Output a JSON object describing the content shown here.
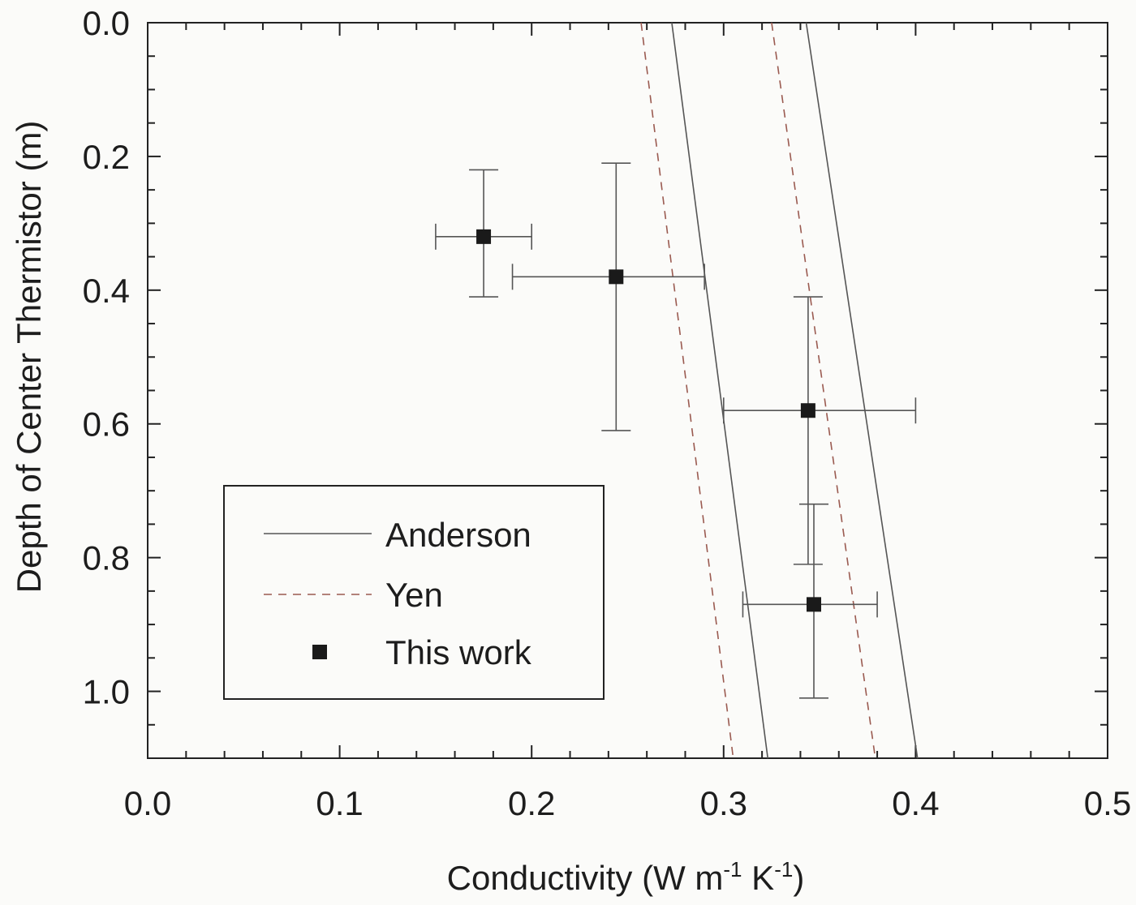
{
  "chart_data": {
    "type": "scatter",
    "xlabel": "Conductivity (W m-1 K-1)",
    "xlabel_parts": {
      "base": "Conductivity (W m",
      "exp1": "-1",
      "mid": " K",
      "exp2": "-1",
      "end": ")"
    },
    "ylabel": "Depth of Center Thermistor (m)",
    "xlim": [
      0.0,
      0.5
    ],
    "ylim": [
      0.0,
      1.1
    ],
    "y_inverted": true,
    "x_ticks": [
      "0.0",
      "0.1",
      "0.2",
      "0.3",
      "0.4",
      "0.5"
    ],
    "y_ticks": [
      "0.0",
      "0.2",
      "0.4",
      "0.6",
      "0.8",
      "1.0"
    ],
    "legend_position": "lower-left",
    "series": [
      {
        "name": "Anderson",
        "style": "solid",
        "lines": [
          {
            "x": [
              0.273,
              0.323
            ],
            "y": [
              0.0,
              1.1
            ]
          },
          {
            "x": [
              0.343,
              0.401
            ],
            "y": [
              0.0,
              1.1
            ]
          }
        ]
      },
      {
        "name": "Yen",
        "style": "dashed",
        "lines": [
          {
            "x": [
              0.257,
              0.305
            ],
            "y": [
              0.0,
              1.1
            ]
          },
          {
            "x": [
              0.325,
              0.379
            ],
            "y": [
              0.0,
              1.1
            ]
          }
        ]
      },
      {
        "name": "This work",
        "style": "marker",
        "points": [
          {
            "x": 0.175,
            "y": 0.32,
            "xerr": [
              0.15,
              0.2
            ],
            "yerr": [
              0.22,
              0.41
            ]
          },
          {
            "x": 0.244,
            "y": 0.38,
            "xerr": [
              0.19,
              0.29
            ],
            "yerr": [
              0.21,
              0.61
            ]
          },
          {
            "x": 0.344,
            "y": 0.58,
            "xerr": [
              0.3,
              0.4
            ],
            "yerr": [
              0.41,
              0.81
            ]
          },
          {
            "x": 0.347,
            "y": 0.87,
            "xerr": [
              0.31,
              0.38
            ],
            "yerr": [
              0.72,
              1.01
            ]
          }
        ]
      }
    ],
    "legend": [
      "Anderson",
      "Yen",
      "This work"
    ]
  }
}
